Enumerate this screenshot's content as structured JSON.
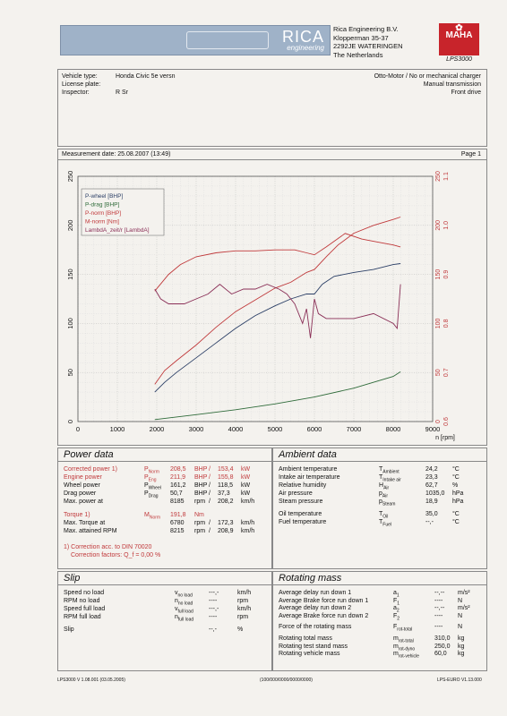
{
  "header": {
    "brand": "RICA",
    "brand_sub": "engineering",
    "company": "Rica Engineering B.V.",
    "street": "Klopperman 35-37",
    "city": "2292JE WATERINGEN",
    "country": "The Netherlands",
    "maha_top": "MAHA",
    "maha_model": "LPS3000"
  },
  "vehicle": {
    "type_label": "Vehicle type:",
    "type_value": "Honda Civic 5e versn",
    "plate_label": "License plate:",
    "plate_value": "",
    "inspector_label": "Inspector:",
    "inspector_value": "R Sr",
    "engine": "Otto-Motor / No or mechanical charger",
    "transmission": "Manual transmission",
    "drive": "Front drive"
  },
  "measurement": {
    "date_text": "Measurement date: 25.08.2007 (13:49)",
    "page": "Page 1"
  },
  "chart_data": {
    "type": "line",
    "xlabel": "n [rpm]",
    "xlim": [
      0,
      9000
    ],
    "x_ticks": [
      "0",
      "1000",
      "2000",
      "3000",
      "4000",
      "5000",
      "6000",
      "7000",
      "8000",
      "9000"
    ],
    "y_left_ticks": [
      "0",
      "50",
      "100",
      "150",
      "200",
      "250"
    ],
    "ylim_left": [
      0,
      250
    ],
    "y_right_ticks": [
      "0",
      "50",
      "100",
      "150",
      "200",
      "250"
    ],
    "y_right_ticks2": [
      "0.6",
      "0.7",
      "0.8",
      "0.9",
      "1.0",
      "1.1"
    ],
    "ylim_right2": [
      0.6,
      1.1
    ],
    "grid": true,
    "legend_position": "top-left",
    "series": [
      {
        "name": "P-wheel [BHP]",
        "color": "#2b3f66",
        "axis": "left",
        "x": [
          1950,
          2200,
          2500,
          3000,
          3500,
          4000,
          4500,
          5000,
          5400,
          5800,
          6000,
          6200,
          6500,
          7000,
          7500,
          8000,
          8185
        ],
        "y": [
          30,
          40,
          50,
          65,
          80,
          95,
          108,
          118,
          125,
          130,
          130,
          140,
          148,
          152,
          155,
          160,
          161
        ]
      },
      {
        "name": "P-drag [BHP]",
        "color": "#2f6b3a",
        "axis": "left",
        "x": [
          1950,
          3000,
          4000,
          5000,
          6000,
          7000,
          8000,
          8185
        ],
        "y": [
          2,
          7,
          12,
          18,
          25,
          34,
          46,
          50.7
        ]
      },
      {
        "name": "P-norm [BHP]",
        "color": "#c0393b",
        "axis": "left",
        "x": [
          1950,
          2200,
          2500,
          3000,
          3500,
          4000,
          4500,
          5000,
          5400,
          5800,
          6000,
          6300,
          6600,
          7000,
          7500,
          8000,
          8185
        ],
        "y": [
          38,
          52,
          62,
          78,
          96,
          112,
          124,
          136,
          142,
          152,
          155,
          168,
          180,
          192,
          200,
          206,
          208.5
        ]
      },
      {
        "name": "M-norm [Nm]",
        "color": "#c0393b",
        "axis": "right",
        "x": [
          1950,
          2300,
          2600,
          3000,
          3500,
          4000,
          4500,
          5000,
          5500,
          5800,
          6000,
          6300,
          6780,
          7200,
          7600,
          8000,
          8185
        ],
        "y": [
          133,
          150,
          160,
          168,
          172,
          174,
          174,
          175,
          175,
          172,
          170,
          178,
          191.8,
          186,
          183,
          180,
          178
        ]
      },
      {
        "name": "LambdA_zeit/r [LambdA]",
        "color": "#8a2f57",
        "axis": "right2",
        "x": [
          1950,
          2100,
          2300,
          2500,
          2700,
          3000,
          3300,
          3600,
          3900,
          4200,
          4500,
          4800,
          5100,
          5300,
          5500,
          5700,
          5800,
          5900,
          6000,
          6100,
          6300,
          6600,
          7000,
          7500,
          8000,
          8100,
          8185
        ],
        "y": [
          0.87,
          0.85,
          0.84,
          0.84,
          0.84,
          0.85,
          0.86,
          0.88,
          0.86,
          0.87,
          0.87,
          0.88,
          0.87,
          0.86,
          0.84,
          0.8,
          0.83,
          0.77,
          0.85,
          0.82,
          0.81,
          0.81,
          0.81,
          0.82,
          0.8,
          0.79,
          0.88
        ]
      }
    ]
  },
  "power": {
    "title": "Power data",
    "rows": [
      {
        "label": "Corrected power",
        "sup": "1)",
        "sym": "P",
        "sub": "Norm",
        "v1": "208,5",
        "u1": "BHP",
        "v2": "153,4",
        "u2": "kW",
        "red": true
      },
      {
        "label": "Engine power",
        "sup": "",
        "sym": "P",
        "sub": "Eng",
        "v1": "211,9",
        "u1": "BHP",
        "v2": "155,8",
        "u2": "kW",
        "red": true
      },
      {
        "label": "Wheel power",
        "sup": "",
        "sym": "P",
        "sub": "Wheel",
        "v1": "161,2",
        "u1": "BHP",
        "v2": "118,5",
        "u2": "kW",
        "red": false
      },
      {
        "label": "Drag power",
        "sup": "",
        "sym": "P",
        "sub": "Drag",
        "v1": "50,7",
        "u1": "BHP",
        "v2": "37,3",
        "u2": "kW",
        "red": false
      },
      {
        "label": "Max. power at",
        "sup": "",
        "sym": "",
        "sub": "",
        "v1": "8185",
        "u1": "rpm",
        "v2": "208,2",
        "u2": "km/h",
        "red": false
      }
    ],
    "torque": {
      "label": "Torque",
      "sup": "1)",
      "sym": "M",
      "sub": "Norm",
      "v1": "191,8",
      "u1": "Nm"
    },
    "torque_at": {
      "label": "Max. Torque at",
      "v1": "6780",
      "u1": "rpm",
      "v2": "172,3",
      "u2": "km/h"
    },
    "max_rpm": {
      "label": "Max. attained RPM",
      "v1": "8215",
      "u1": "rpm",
      "v2": "208,9",
      "u2": "km/h"
    },
    "note1": "1) Correction acc. to DIN 70020",
    "note2": "Correction factors: Q_f = 0,00 %"
  },
  "ambient": {
    "title": "Ambient data",
    "rows": [
      {
        "label": "Ambient temperature",
        "sym": "T",
        "sub": "Ambient",
        "v": "24,2",
        "u": "°C"
      },
      {
        "label": "Intake air temperature",
        "sym": "T",
        "sub": "Intake air",
        "v": "23,3",
        "u": "°C"
      },
      {
        "label": "Relative humidity",
        "sym": "H",
        "sub": "Air",
        "v": "62,7",
        "u": "%"
      },
      {
        "label": "Air pressure",
        "sym": "p",
        "sub": "Air",
        "v": "1035,0",
        "u": "hPa"
      },
      {
        "label": "Steam pressure",
        "sym": "p",
        "sub": "Steam",
        "v": "18,9",
        "u": "hPa"
      },
      {
        "label": "Oil temperature",
        "sym": "T",
        "sub": "Oil",
        "v": "35,0",
        "u": "°C"
      },
      {
        "label": "Fuel temperature",
        "sym": "T",
        "sub": "Fuel",
        "v": "--,-",
        "u": "°C"
      }
    ]
  },
  "slip": {
    "title": "Slip",
    "rows": [
      {
        "label": "Speed no load",
        "sym": "v",
        "sub": "no load",
        "v": "---,-",
        "u": "km/h"
      },
      {
        "label": "RPM no load",
        "sym": "n",
        "sub": "no load",
        "v": "----",
        "u": "rpm"
      },
      {
        "label": "Speed full load",
        "sym": "v",
        "sub": "full load",
        "v": "---,-",
        "u": "km/h"
      },
      {
        "label": "RPM full load",
        "sym": "n",
        "sub": "full load",
        "v": "----",
        "u": "rpm"
      },
      {
        "label": "Slip",
        "sym": "",
        "sub": "",
        "v": "--,-",
        "u": "%"
      }
    ]
  },
  "rotating": {
    "title": "Rotating mass",
    "rows": [
      {
        "label": "Average delay run down 1",
        "sym": "a",
        "sub": "1",
        "v": "--,--",
        "u": "m/s²"
      },
      {
        "label": "Average Brake force run down 1",
        "sym": "F",
        "sub": "1",
        "v": "----",
        "u": "N"
      },
      {
        "label": "Average delay run down 2",
        "sym": "a",
        "sub": "2",
        "v": "--,--",
        "u": "m/s²"
      },
      {
        "label": "Average Brake force run down 2",
        "sym": "F",
        "sub": "2",
        "v": "----",
        "u": "N"
      },
      {
        "label": "Force of the rotating mass",
        "sym": "F",
        "sub": "rot-total",
        "v": "----",
        "u": "N"
      },
      {
        "label": "Rotating total mass",
        "sym": "m",
        "sub": "rot-total",
        "v": "310,0",
        "u": "kg"
      },
      {
        "label": "Rotating test stand mass",
        "sym": "m",
        "sub": "rot-dyno",
        "v": "250,0",
        "u": "kg"
      },
      {
        "label": "Rotating vehicle mass",
        "sym": "m",
        "sub": "rot-vehicle",
        "v": "60,0",
        "u": "kg"
      }
    ]
  },
  "footer": {
    "left": "LPS3000 V 1.08.001 (03.05.2005)",
    "center": "(100/000/0000/0000/0000)",
    "right": "LPS-EURO V1.13.000"
  }
}
